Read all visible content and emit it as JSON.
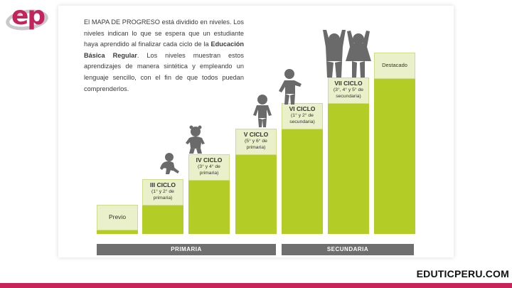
{
  "brand": {
    "logo_text": "ep",
    "logo_color": "#c4245c",
    "site": "EDUTICPERU.COM",
    "accent": "#c9245a"
  },
  "intro": {
    "part1": "El MAPA DE PROGRESO está dividido en niveles. Los niveles indican lo que se espera que un estudiante haya aprendido al finalizar cada ciclo de la ",
    "bold": "Educación Básica Regular",
    "part2": ". Los niveles muestran estos aprendizajes de manera sintética y empleando un lenguaje sencillo, con el fin de que todos puedan comprenderlos."
  },
  "steps": [
    {
      "name": "Previo",
      "sub": ""
    },
    {
      "name": "III CICLO",
      "sub": "(1° y 2° de primaria)"
    },
    {
      "name": "IV CICLO",
      "sub": "(3° y 4° de primaria)"
    },
    {
      "name": "V CICLO",
      "sub": "(5° y 6° de primaria)"
    },
    {
      "name": "VI CICLO",
      "sub": "(1° y 2° de secundaria)"
    },
    {
      "name": "VII CICLO",
      "sub": "(3°, 4° y 5° de secundaria)"
    },
    {
      "name": "Destacado",
      "sub": ""
    }
  ],
  "bands": {
    "primaria": "PRIMARIA",
    "secundaria": "SECUNDARIA"
  },
  "colors": {
    "step_green": "#b4cc26",
    "caption_bg": "#eaf0c9",
    "band_gray": "#6f6f6f",
    "figure_gray": "#6a6a6a"
  }
}
